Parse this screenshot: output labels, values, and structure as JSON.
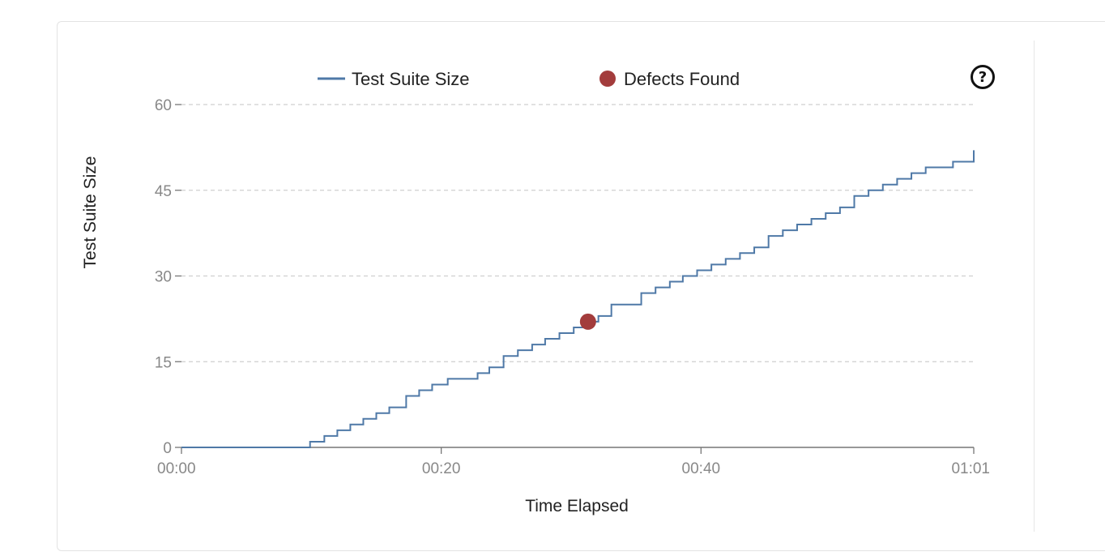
{
  "help_icon": {
    "glyph": "?"
  },
  "chart_data": {
    "type": "line",
    "legend": [
      {
        "label": "Test Suite Size",
        "marker": "line",
        "color": "#4f79a7"
      },
      {
        "label": "Defects Found",
        "marker": "dot",
        "color": "#a33c3c"
      }
    ],
    "xlabel": "Time Elapsed",
    "ylabel": "Test Suite Size",
    "x_unit": "seconds",
    "xlim": [
      0,
      61
    ],
    "ylim": [
      0,
      60
    ],
    "x_ticks": [
      {
        "value": 0,
        "label": "00:00"
      },
      {
        "value": 20,
        "label": "00:20"
      },
      {
        "value": 40,
        "label": "00:40"
      },
      {
        "value": 61,
        "label": "01:01"
      }
    ],
    "y_ticks": [
      0,
      15,
      30,
      45,
      60
    ],
    "grid": "horizontal dashed",
    "legend_position": "top",
    "series": [
      {
        "name": "Test Suite Size",
        "shape": "step",
        "points": [
          [
            0,
            0
          ],
          [
            9.9,
            1
          ],
          [
            11,
            2
          ],
          [
            12,
            3
          ],
          [
            13,
            4
          ],
          [
            14,
            5
          ],
          [
            15,
            6
          ],
          [
            16,
            7
          ],
          [
            17.3,
            9
          ],
          [
            18.3,
            10
          ],
          [
            19.3,
            11
          ],
          [
            20.5,
            12
          ],
          [
            22.8,
            13
          ],
          [
            23.7,
            14
          ],
          [
            24.8,
            16
          ],
          [
            25.9,
            17
          ],
          [
            27,
            18
          ],
          [
            28,
            19
          ],
          [
            29.1,
            20
          ],
          [
            30.2,
            21
          ],
          [
            31.3,
            22
          ],
          [
            32.1,
            23
          ],
          [
            33.1,
            25
          ],
          [
            35.4,
            27
          ],
          [
            36.5,
            28
          ],
          [
            37.6,
            29
          ],
          [
            38.6,
            30
          ],
          [
            39.7,
            31
          ],
          [
            40.8,
            32
          ],
          [
            41.9,
            33
          ],
          [
            43,
            34
          ],
          [
            44.1,
            35
          ],
          [
            45.2,
            37
          ],
          [
            46.3,
            38
          ],
          [
            47.4,
            39
          ],
          [
            48.5,
            40
          ],
          [
            49.6,
            41
          ],
          [
            50.7,
            42
          ],
          [
            51.8,
            44
          ],
          [
            52.9,
            45
          ],
          [
            54,
            46
          ],
          [
            55.1,
            47
          ],
          [
            56.2,
            48
          ],
          [
            57.3,
            49
          ],
          [
            59.4,
            50
          ],
          [
            61,
            52
          ]
        ]
      },
      {
        "name": "Defects Found",
        "shape": "scatter",
        "points": [
          [
            31.3,
            22
          ]
        ]
      }
    ]
  }
}
